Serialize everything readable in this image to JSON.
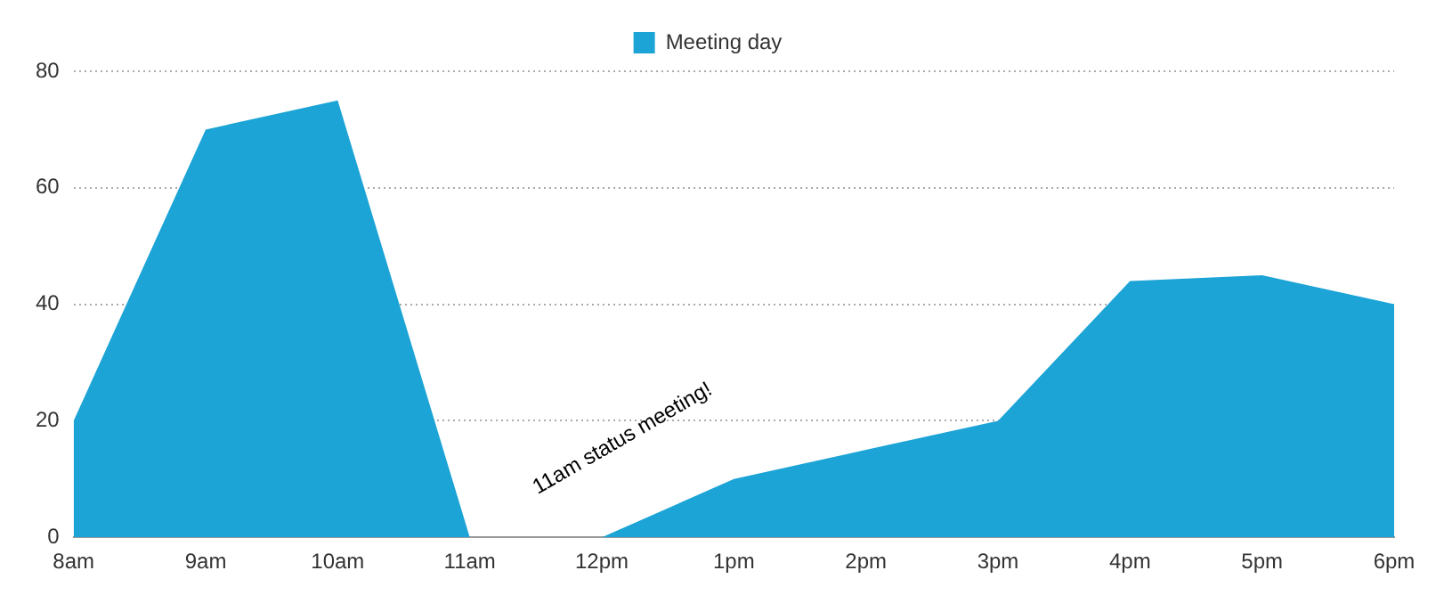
{
  "chart_data": {
    "type": "area",
    "categories": [
      "8am",
      "9am",
      "10am",
      "11am",
      "12pm",
      "1pm",
      "2pm",
      "3pm",
      "4pm",
      "5pm",
      "6pm"
    ],
    "series": [
      {
        "name": "Meeting day",
        "color": "#1ca4d6",
        "values": [
          20,
          70,
          75,
          0,
          0,
          10,
          15,
          20,
          44,
          45,
          40
        ]
      }
    ],
    "ylim": [
      0,
      80
    ],
    "yticks": [
      0,
      20,
      40,
      60,
      80
    ],
    "grid": "y",
    "legend": "top",
    "annotations": [
      {
        "text": "11am status meeting!",
        "x": "12pm",
        "y": 0
      }
    ]
  }
}
